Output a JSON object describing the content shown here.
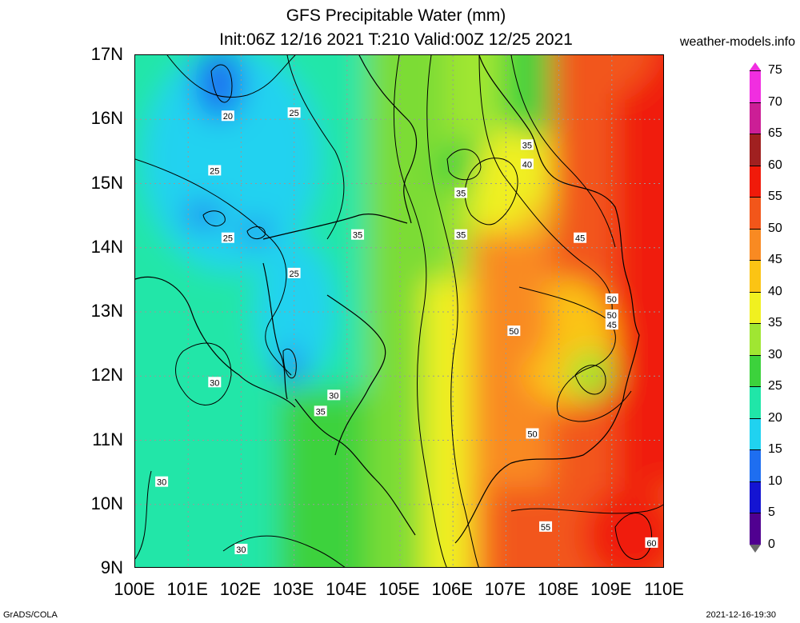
{
  "title": {
    "line1": "GFS Precipitable Water (mm)",
    "line2": "Init:06Z 12/16 2021 T:210 Valid:00Z 12/25 2021"
  },
  "site": "weather-models.info",
  "axes": {
    "lat_labels": [
      "17N",
      "16N",
      "15N",
      "14N",
      "13N",
      "12N",
      "11N",
      "10N",
      "9N"
    ],
    "lon_labels": [
      "100E",
      "101E",
      "102E",
      "103E",
      "104E",
      "105E",
      "106E",
      "107E",
      "108E",
      "109E",
      "110E"
    ]
  },
  "colorbar": {
    "labels": [
      "75",
      "70",
      "65",
      "60",
      "55",
      "50",
      "45",
      "40",
      "35",
      "30",
      "25",
      "20",
      "15",
      "10",
      "5",
      "0"
    ],
    "colors": [
      "#f02ee0",
      "#cc1e96",
      "#a02020",
      "#f01a0a",
      "#f2561a",
      "#f98a22",
      "#fbc414",
      "#f0f020",
      "#a0e632",
      "#3cd23c",
      "#20e6a8",
      "#20d2f0",
      "#1e6ef0",
      "#1414d2",
      "#500090",
      "#6a6a6a"
    ]
  },
  "contour_labels": [
    {
      "text": "20",
      "lon": 101.75,
      "lat": 16.05
    },
    {
      "text": "25",
      "lon": 103.0,
      "lat": 16.1
    },
    {
      "text": "25",
      "lon": 101.5,
      "lat": 15.2
    },
    {
      "text": "25",
      "lon": 101.75,
      "lat": 14.15
    },
    {
      "text": "25",
      "lon": 103.0,
      "lat": 13.6
    },
    {
      "text": "35",
      "lon": 106.15,
      "lat": 14.2
    },
    {
      "text": "35",
      "lon": 104.2,
      "lat": 14.2
    },
    {
      "text": "35",
      "lon": 106.15,
      "lat": 14.85
    },
    {
      "text": "35",
      "lon": 107.4,
      "lat": 15.6
    },
    {
      "text": "40",
      "lon": 107.4,
      "lat": 15.3
    },
    {
      "text": "45",
      "lon": 108.4,
      "lat": 14.15
    },
    {
      "text": "50",
      "lon": 109.0,
      "lat": 13.2
    },
    {
      "text": "50",
      "lon": 109.0,
      "lat": 12.95
    },
    {
      "text": "45",
      "lon": 109.0,
      "lat": 12.8
    },
    {
      "text": "50",
      "lon": 107.15,
      "lat": 12.7
    },
    {
      "text": "30",
      "lon": 101.5,
      "lat": 11.9
    },
    {
      "text": "30",
      "lon": 103.75,
      "lat": 11.7
    },
    {
      "text": "35",
      "lon": 103.5,
      "lat": 11.45
    },
    {
      "text": "50",
      "lon": 107.5,
      "lat": 11.1
    },
    {
      "text": "30",
      "lon": 100.5,
      "lat": 10.35
    },
    {
      "text": "55",
      "lon": 107.75,
      "lat": 9.65
    },
    {
      "text": "30",
      "lon": 102.0,
      "lat": 9.3
    },
    {
      "text": "60",
      "lon": 109.75,
      "lat": 9.4
    }
  ],
  "footer": {
    "left": "GrADS/COLA",
    "right": "2021-12-16-19:30"
  }
}
